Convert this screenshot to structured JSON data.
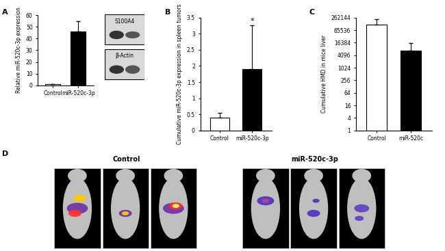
{
  "panel_labels": [
    "A",
    "B",
    "C",
    "D"
  ],
  "chart_data": [
    {
      "type": "bar",
      "ylabel": "Relative miR-520c-3p expression",
      "categories": [
        "Control",
        "miR-520c-3p"
      ],
      "values": [
        1,
        46
      ],
      "errors": [
        0.3,
        9
      ],
      "colors": [
        "#ffffff",
        "#000000"
      ],
      "ylim": [
        0,
        60
      ],
      "yticks": [
        0,
        10,
        20,
        30,
        40,
        50,
        60
      ]
    },
    {
      "type": "bar",
      "ylabel": "Cumulative miR-520c-3p expression in spleen tumors",
      "categories": [
        "Control",
        "miR-520c-3p"
      ],
      "values": [
        0.4,
        1.9
      ],
      "errors": [
        0.15,
        1.35
      ],
      "colors": [
        "#ffffff",
        "#000000"
      ],
      "ylim": [
        0,
        3.5
      ],
      "yticks": [
        0,
        0.5,
        1,
        1.5,
        2,
        2.5,
        3,
        3.5
      ],
      "annotations": [
        {
          "text": "*",
          "category": "miR-520c-3p"
        }
      ]
    },
    {
      "type": "bar",
      "ylabel": "Cumulative HMD in mice liver",
      "categories": [
        "Control",
        "miR-520c"
      ],
      "values": [
        120000,
        7000
      ],
      "errors": [
        100000,
        9000
      ],
      "colors": [
        "#ffffff",
        "#000000"
      ],
      "log": "y",
      "ylim": [
        1,
        262144
      ],
      "yticks": [
        1,
        4,
        16,
        64,
        256,
        1024,
        4096,
        16384,
        65536,
        262144
      ]
    }
  ],
  "blot": {
    "bands": [
      "S100A4",
      "β-Actin"
    ]
  },
  "imaging": {
    "groups": [
      "Control",
      "miR-520c-3p"
    ]
  }
}
